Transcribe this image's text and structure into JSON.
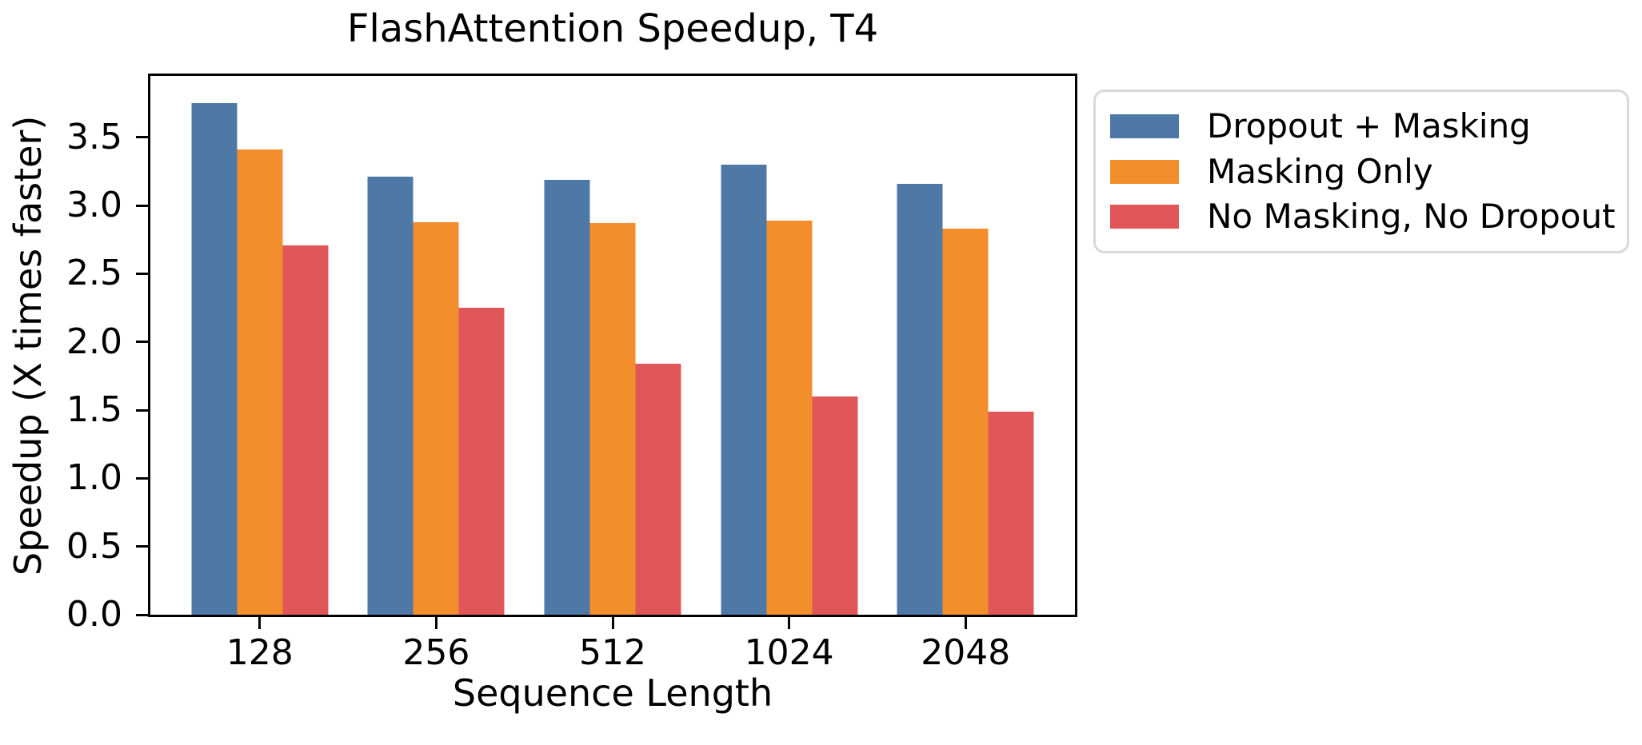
{
  "chart_data": {
    "type": "bar",
    "title": "FlashAttention Speedup, T4",
    "xlabel": "Sequence Length",
    "ylabel": "Speedup (X times faster)",
    "categories": [
      "128",
      "256",
      "512",
      "1024",
      "2048"
    ],
    "series": [
      {
        "name": "Dropout + Masking",
        "color": "#4E79A7",
        "values": [
          3.75,
          3.21,
          3.19,
          3.3,
          3.16
        ]
      },
      {
        "name": "Masking Only",
        "color": "#F28E2B",
        "values": [
          3.41,
          2.88,
          2.87,
          2.89,
          2.83
        ]
      },
      {
        "name": "No Masking, No Dropout",
        "color": "#E15759",
        "values": [
          2.71,
          2.25,
          1.84,
          1.6,
          1.49
        ]
      }
    ],
    "yticks": [
      0.0,
      0.5,
      1.0,
      1.5,
      2.0,
      2.5,
      3.0,
      3.5
    ],
    "ytick_labels": [
      "0.0",
      "0.5",
      "1.0",
      "1.5",
      "2.0",
      "2.5",
      "3.0",
      "3.5"
    ],
    "ylim": [
      0,
      3.95
    ],
    "xlim_units": [
      -0.62,
      4.62
    ],
    "grid": false,
    "legend_position": "outside-upper-right",
    "colors": {
      "spine": "#000000",
      "text": "#000000",
      "legend_border": "#d9d9d9",
      "background": "#ffffff"
    }
  }
}
